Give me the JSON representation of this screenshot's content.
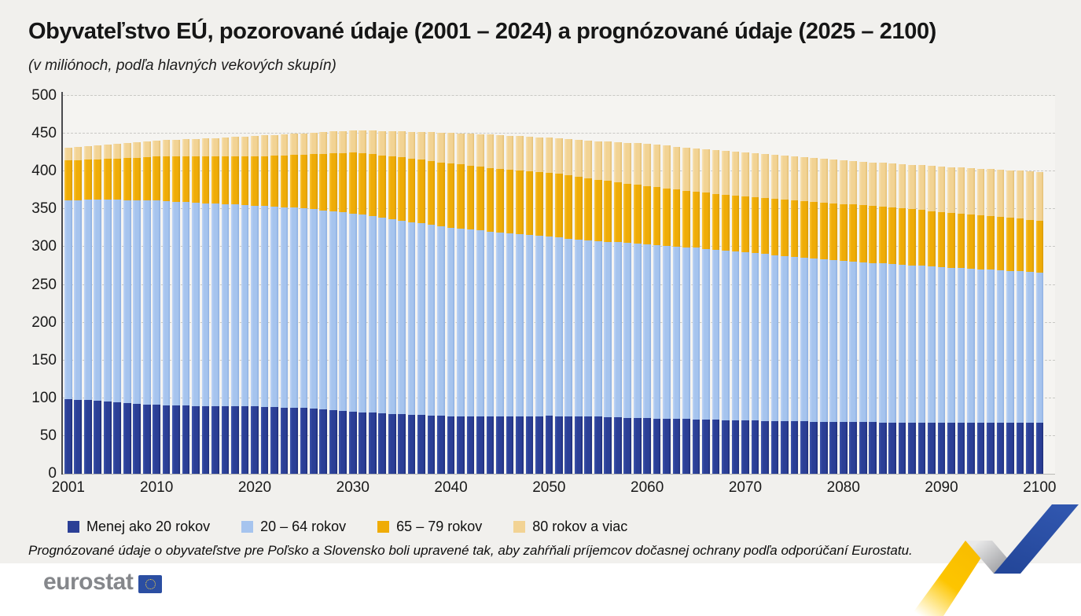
{
  "title": "Obyvateľstvo EÚ, pozorované údaje (2001 – 2024) a prognózované údaje (2025 – 2100)",
  "subtitle": "(v miliónoch, podľa hlavných vekových skupín)",
  "footnote": "Prognózované údaje o obyvateľstve pre Poľsko a Slovensko boli upravené tak, aby zahŕňali príjemcov dočasnej ochrany podľa odporúčaní Eurostatu.",
  "logo_text": "eurostat",
  "colors": {
    "background": "#F1F0ED",
    "plot_background": "#F5F4F1",
    "footer_background": "#FFFFFF",
    "axis": "#4A4B4F",
    "gridline": "#C9C9C5",
    "logo_blue": "#2B4EA2",
    "logo_text": "#85878B",
    "ribbon_yellow": "#FFCC00",
    "ribbon_gray": "#9B9CA0",
    "ribbon_blue": "#2C4FA3"
  },
  "chart_data": {
    "type": "bar",
    "stacked": true,
    "title": "Obyvateľstvo EÚ, pozorované údaje (2001 – 2024) a prognózované údaje (2025 – 2100)",
    "subtitle": "(v miliónoch, podľa hlavných vekových skupín)",
    "xlabel": "",
    "ylabel": "",
    "ylim": [
      0,
      500
    ],
    "yticks": [
      0,
      50,
      100,
      150,
      200,
      250,
      300,
      350,
      400,
      450,
      500
    ],
    "xticks": [
      2001,
      2010,
      2020,
      2030,
      2040,
      2050,
      2060,
      2070,
      2080,
      2090,
      2100
    ],
    "grid": "horizontal-dashed",
    "legend_position": "bottom",
    "x": [
      2001,
      2002,
      2003,
      2004,
      2005,
      2006,
      2007,
      2008,
      2009,
      2010,
      2011,
      2012,
      2013,
      2014,
      2015,
      2016,
      2017,
      2018,
      2019,
      2020,
      2021,
      2022,
      2023,
      2024,
      2025,
      2026,
      2027,
      2028,
      2029,
      2030,
      2031,
      2032,
      2033,
      2034,
      2035,
      2036,
      2037,
      2038,
      2039,
      2040,
      2041,
      2042,
      2043,
      2044,
      2045,
      2046,
      2047,
      2048,
      2049,
      2050,
      2051,
      2052,
      2053,
      2054,
      2055,
      2056,
      2057,
      2058,
      2059,
      2060,
      2061,
      2062,
      2063,
      2064,
      2065,
      2066,
      2067,
      2068,
      2069,
      2070,
      2071,
      2072,
      2073,
      2074,
      2075,
      2076,
      2077,
      2078,
      2079,
      2080,
      2081,
      2082,
      2083,
      2084,
      2085,
      2086,
      2087,
      2088,
      2089,
      2090,
      2091,
      2092,
      2093,
      2094,
      2095,
      2096,
      2097,
      2098,
      2099,
      2100
    ],
    "series": [
      {
        "name": "Menej ako 20 rokov",
        "color": "#2B3F96",
        "colorLight": "#3D55AC",
        "colorDark": "#1E2E78",
        "values": [
          99,
          98.1,
          97.3,
          96.4,
          95.5,
          94.6,
          93.7,
          92.8,
          91.9,
          91,
          90.7,
          90.4,
          90.1,
          89.8,
          89.5,
          89.4,
          89.3,
          89.2,
          89.1,
          89,
          88.6,
          88.2,
          87.8,
          87.4,
          87,
          86,
          85,
          84,
          83,
          82,
          81.3,
          80.6,
          79.9,
          79.2,
          78.5,
          78,
          77.5,
          77,
          76.5,
          76,
          76,
          76,
          76,
          76,
          76,
          76.1,
          76.2,
          76.3,
          76.4,
          76.5,
          76.3,
          76.1,
          75.9,
          75.7,
          75.5,
          75.1,
          74.7,
          74.3,
          73.9,
          73.5,
          73.2,
          72.9,
          72.6,
          72.3,
          72,
          71.7,
          71.4,
          71.1,
          70.8,
          70.5,
          70.3,
          70.1,
          69.9,
          69.7,
          69.5,
          69.3,
          69.1,
          68.9,
          68.7,
          68.5,
          68.4,
          68.3,
          68.2,
          68.1,
          68,
          67.9,
          67.8,
          67.7,
          67.6,
          67.5,
          67.5,
          67.5,
          67.5,
          67.5,
          67.5,
          67.5,
          67.5,
          67.5,
          67.5,
          67.5
        ]
      },
      {
        "name": "20 – 64 rokov",
        "color": "#A6C4EE",
        "colorLight": "#BFD4F5",
        "colorDark": "#8DAFE1",
        "values": [
          263,
          264,
          265,
          266,
          267,
          267.7,
          268.4,
          269.1,
          269.8,
          270.5,
          270.1,
          269.7,
          269.3,
          268.9,
          268.5,
          268,
          267.5,
          267,
          266.5,
          266,
          265.7,
          265.4,
          265.1,
          264.8,
          264.5,
          264.1,
          263.7,
          263.3,
          262.9,
          262.5,
          261.3,
          260.1,
          258.9,
          257.7,
          256.5,
          255.1,
          253.7,
          252.3,
          250.9,
          249.5,
          248.3,
          247.1,
          245.9,
          244.7,
          243.5,
          242.2,
          240.9,
          239.6,
          238.3,
          237,
          236.1,
          235.2,
          234.3,
          233.4,
          232.5,
          232,
          231.5,
          231,
          230.5,
          230,
          229.4,
          228.8,
          228.2,
          227.6,
          227,
          226.1,
          225.2,
          224.3,
          223.4,
          222.5,
          221.5,
          220.5,
          219.5,
          218.5,
          217.5,
          216.6,
          215.7,
          214.8,
          213.9,
          213,
          212.3,
          211.6,
          210.9,
          210.2,
          209.5,
          208.8,
          208.1,
          207.4,
          206.7,
          206,
          205.3,
          204.6,
          203.9,
          203.2,
          202.5,
          201.8,
          201.1,
          200.4,
          199.7,
          199
        ]
      },
      {
        "name": "65 – 79 rokov",
        "color": "#EFAC07",
        "colorLight": "#FBC437",
        "colorDark": "#D79A00",
        "values": [
          52.5,
          52.9,
          53.3,
          53.6,
          54,
          54.8,
          55.6,
          56.4,
          57.2,
          58,
          58.7,
          59.4,
          60.1,
          60.8,
          61.5,
          62.2,
          62.9,
          63.6,
          64.3,
          65,
          66.1,
          67.2,
          68.3,
          69.4,
          70.5,
          72.5,
          74.5,
          76.5,
          78.5,
          80.5,
          81.2,
          81.9,
          82.6,
          83.3,
          84,
          84.2,
          84.4,
          84.6,
          84.8,
          85,
          84.8,
          84.6,
          84.4,
          84.2,
          84,
          84.2,
          84.4,
          84.6,
          84.8,
          85,
          84.2,
          83.4,
          82.6,
          81.8,
          81,
          80.2,
          79.4,
          78.6,
          77.8,
          77,
          76.4,
          75.8,
          75.2,
          74.6,
          74,
          74,
          74,
          74,
          74,
          74,
          74.1,
          74.2,
          74.3,
          74.4,
          74.5,
          74.7,
          74.9,
          75.1,
          75.3,
          75.5,
          75.4,
          75.3,
          75.2,
          75.1,
          75,
          74.6,
          74.2,
          73.8,
          73.4,
          73,
          72.6,
          72.2,
          71.8,
          71.4,
          71,
          70.5,
          70,
          69.5,
          69,
          68.5
        ]
      },
      {
        "name": "80 rokov a viac",
        "color": "#F2D394",
        "colorLight": "#F8E2B4",
        "colorDark": "#E3BF74",
        "values": [
          16.5,
          17.1,
          17.8,
          18.4,
          19,
          19.5,
          20,
          20.5,
          21,
          21.5,
          22,
          22.5,
          23,
          23.5,
          24,
          24.6,
          25.2,
          25.8,
          26.4,
          27,
          27.3,
          27.6,
          27.9,
          28.2,
          28.5,
          28.7,
          28.9,
          29.1,
          29.3,
          29.5,
          30.4,
          31.3,
          32.2,
          33.1,
          34,
          35.3,
          36.6,
          37.9,
          39.2,
          40.5,
          41.3,
          42.1,
          42.9,
          43.7,
          44.5,
          44.8,
          45.1,
          45.4,
          45.7,
          46,
          47,
          48,
          49,
          50,
          51,
          52,
          53,
          54,
          55,
          56,
          56.3,
          56.6,
          56.9,
          57.2,
          57.5,
          57.7,
          57.9,
          58.1,
          58.3,
          58.5,
          58.4,
          58.3,
          58.2,
          58.1,
          58,
          57.9,
          57.8,
          57.7,
          57.6,
          57.5,
          57.6,
          57.7,
          57.8,
          57.9,
          58,
          58.4,
          58.8,
          59.2,
          59.6,
          60,
          60.4,
          60.8,
          61.2,
          61.6,
          62,
          62.5,
          63,
          63.5,
          64,
          64.5
        ]
      }
    ]
  }
}
